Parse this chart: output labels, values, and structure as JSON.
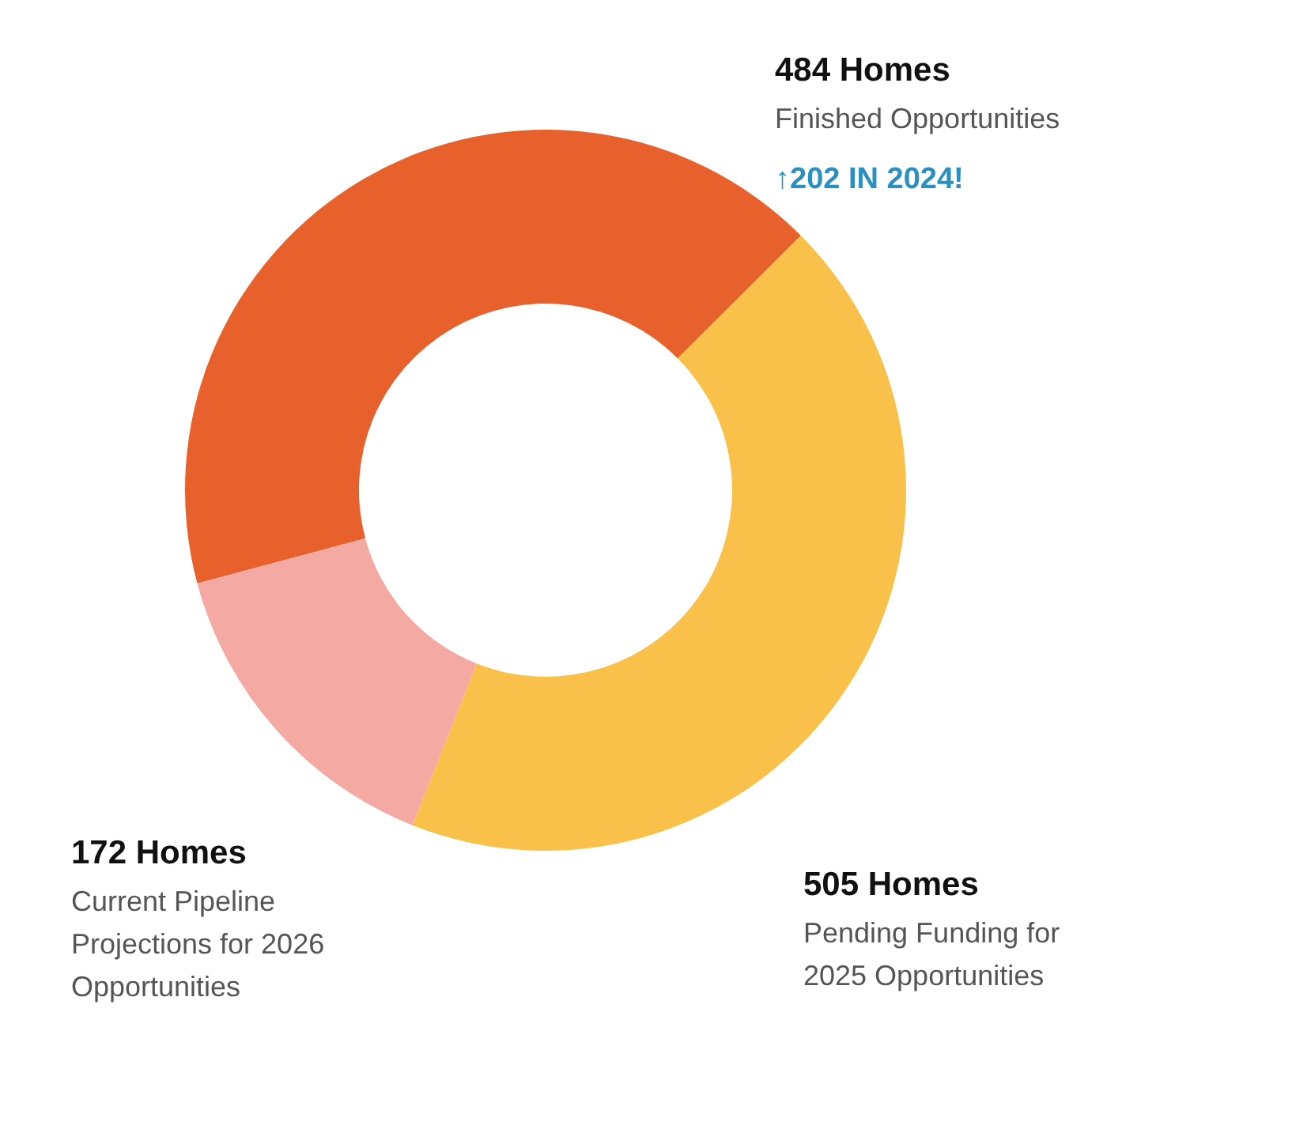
{
  "chart_data": {
    "type": "donut",
    "categories": [
      "Finished Opportunities",
      "Pending Funding for 2025 Opportunities",
      "Current Pipeline Projections for 2026 Opportunities"
    ],
    "values": [
      484,
      505,
      172
    ],
    "value_labels": [
      "484 Homes",
      "505 Homes",
      "172 Homes"
    ],
    "colors": [
      "#e8602c",
      "#f9c149",
      "#f4aaa3"
    ],
    "annotations": [
      "↑202 IN 2024!"
    ]
  }
}
